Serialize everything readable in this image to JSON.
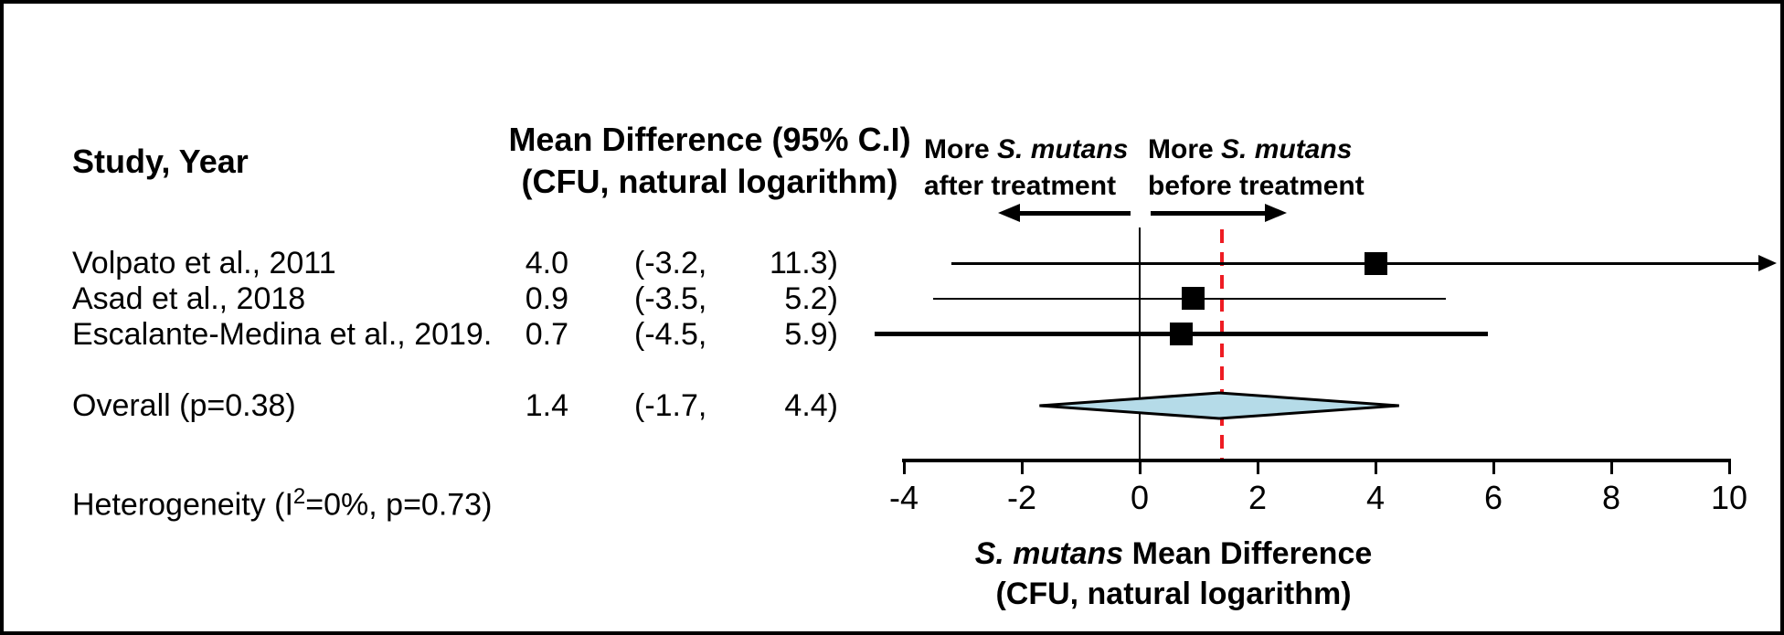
{
  "header": {
    "study_col": "Study, Year",
    "effect_col_line1": "Mean Difference (95% C.I)",
    "effect_col_line2": "(CFU, natural logarithm)"
  },
  "directions": {
    "left_more": "More ",
    "left_species": "S. mutans",
    "left_line2": "after treatment",
    "right_more": "More ",
    "right_species": "S. mutans",
    "right_line2": "before treatment"
  },
  "axis_caption": {
    "species": "S. mutans",
    "rest": " Mean Difference",
    "line2": "(CFU, natural logarithm)"
  },
  "heterogeneity": {
    "prefix": "Heterogeneity (I",
    "sup": "2",
    "suffix": "=0%, p=0.73)"
  },
  "chart_data": {
    "type": "forest",
    "effect_measure": "Mean Difference (95% C.I) (CFU, natural logarithm)",
    "x_ticks": [
      -4,
      -2,
      0,
      2,
      4,
      6,
      8,
      10
    ],
    "x_range": [
      -4,
      10
    ],
    "reference_line_x": 0,
    "overall_estimate_line_x": 1.4,
    "studies": [
      {
        "label": "Volpato et al., 2011",
        "mean": 4.0,
        "ci_low": -3.2,
        "ci_high": 11.3,
        "ci_high_offscale": true,
        "line_weight": 3
      },
      {
        "label": "Asad et al., 2018",
        "mean": 0.9,
        "ci_low": -3.5,
        "ci_high": 5.2,
        "ci_high_offscale": false,
        "line_weight": 2
      },
      {
        "label": "Escalante-Medina et al., 2019.",
        "mean": 0.7,
        "ci_low": -4.5,
        "ci_high": 5.9,
        "ci_high_offscale": false,
        "line_weight": 5
      }
    ],
    "overall": {
      "label": "Overall (p=0.38)",
      "mean": 1.4,
      "ci_low": -1.7,
      "ci_high": 4.4,
      "p_value": 0.38
    },
    "heterogeneity": {
      "i_squared": "0%",
      "p_value": 0.73
    },
    "direction_left": "More S. mutans after treatment",
    "direction_right": "More S. mutans before treatment",
    "xlabel": "S. mutans Mean Difference (CFU, natural logarithm)",
    "colors": {
      "diamond_fill": "#b5dbe8",
      "overall_line_red": "#ee1c23",
      "marker_black": "#000000"
    }
  }
}
